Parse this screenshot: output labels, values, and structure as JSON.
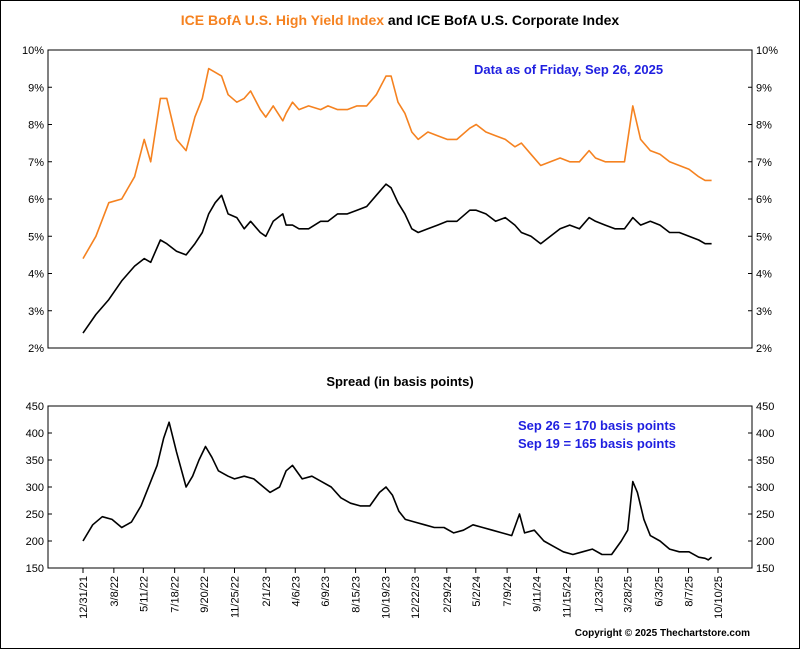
{
  "title": {
    "part_a": "ICE BofA U.S. High Yield Index",
    "part_b": " and ICE BofA U.S. Corporate Index"
  },
  "notes": {
    "data_as_of": "Data as of Friday, Sep 26, 2025",
    "spread_current": "Sep 26 = 170 basis points",
    "spread_prior": "Sep 19 = 165 basis points"
  },
  "spread_title": "Spread (in basis points)",
  "copyright": "Copyright © 2025 Thechartstore.com",
  "colors": {
    "high_yield": "#f58220",
    "corporate": "#000000",
    "spread": "#000000",
    "notes": "#1f1fe0"
  },
  "chart_data": [
    {
      "type": "line",
      "y_scale": "linear",
      "ylim": [
        2,
        10
      ],
      "y_ticks": [
        "2%",
        "3%",
        "4%",
        "5%",
        "6%",
        "7%",
        "8%",
        "9%",
        "10%"
      ],
      "y_axis_sides": "both",
      "grid": false,
      "x_type": "date",
      "x_range": [
        "2021-12-31",
        "2025-10-10"
      ],
      "series": [
        {
          "name": "ICE BofA U.S. High Yield Index",
          "color": "#f58220",
          "points": [
            [
              "2021-12-31",
              4.4
            ],
            [
              "2022-01-28",
              5.0
            ],
            [
              "2022-02-25",
              5.9
            ],
            [
              "2022-03-25",
              6.0
            ],
            [
              "2022-04-22",
              6.6
            ],
            [
              "2022-05-13",
              7.6
            ],
            [
              "2022-05-27",
              7.0
            ],
            [
              "2022-06-17",
              8.7
            ],
            [
              "2022-07-01",
              8.7
            ],
            [
              "2022-07-22",
              7.6
            ],
            [
              "2022-08-12",
              7.3
            ],
            [
              "2022-08-31",
              8.2
            ],
            [
              "2022-09-16",
              8.7
            ],
            [
              "2022-09-30",
              9.5
            ],
            [
              "2022-10-14",
              9.4
            ],
            [
              "2022-10-28",
              9.3
            ],
            [
              "2022-11-11",
              8.8
            ],
            [
              "2022-11-30",
              8.6
            ],
            [
              "2022-12-16",
              8.7
            ],
            [
              "2022-12-30",
              8.9
            ],
            [
              "2023-01-20",
              8.4
            ],
            [
              "2023-02-01",
              8.2
            ],
            [
              "2023-02-17",
              8.5
            ],
            [
              "2023-03-10",
              8.1
            ],
            [
              "2023-03-17",
              8.3
            ],
            [
              "2023-03-31",
              8.6
            ],
            [
              "2023-04-14",
              8.4
            ],
            [
              "2023-05-05",
              8.5
            ],
            [
              "2023-05-31",
              8.4
            ],
            [
              "2023-06-16",
              8.5
            ],
            [
              "2023-07-07",
              8.4
            ],
            [
              "2023-07-28",
              8.4
            ],
            [
              "2023-08-18",
              8.5
            ],
            [
              "2023-09-08",
              8.5
            ],
            [
              "2023-09-29",
              8.8
            ],
            [
              "2023-10-20",
              9.3
            ],
            [
              "2023-10-31",
              9.3
            ],
            [
              "2023-11-15",
              8.6
            ],
            [
              "2023-11-30",
              8.3
            ],
            [
              "2023-12-15",
              7.8
            ],
            [
              "2023-12-29",
              7.6
            ],
            [
              "2024-01-19",
              7.8
            ],
            [
              "2024-02-09",
              7.7
            ],
            [
              "2024-03-01",
              7.6
            ],
            [
              "2024-03-22",
              7.6
            ],
            [
              "2024-04-19",
              7.9
            ],
            [
              "2024-05-03",
              8.0
            ],
            [
              "2024-05-24",
              7.8
            ],
            [
              "2024-06-14",
              7.7
            ],
            [
              "2024-07-05",
              7.6
            ],
            [
              "2024-07-26",
              7.4
            ],
            [
              "2024-08-09",
              7.5
            ],
            [
              "2024-08-30",
              7.2
            ],
            [
              "2024-09-20",
              6.9
            ],
            [
              "2024-10-11",
              7.0
            ],
            [
              "2024-11-01",
              7.1
            ],
            [
              "2024-11-22",
              7.0
            ],
            [
              "2024-12-13",
              7.0
            ],
            [
              "2025-01-03",
              7.3
            ],
            [
              "2025-01-17",
              7.1
            ],
            [
              "2025-02-07",
              7.0
            ],
            [
              "2025-02-28",
              7.0
            ],
            [
              "2025-03-21",
              7.0
            ],
            [
              "2025-04-08",
              8.5
            ],
            [
              "2025-04-25",
              7.6
            ],
            [
              "2025-05-16",
              7.3
            ],
            [
              "2025-06-06",
              7.2
            ],
            [
              "2025-06-27",
              7.0
            ],
            [
              "2025-07-18",
              6.9
            ],
            [
              "2025-08-08",
              6.8
            ],
            [
              "2025-08-29",
              6.6
            ],
            [
              "2025-09-12",
              6.5
            ],
            [
              "2025-09-26",
              6.5
            ]
          ]
        },
        {
          "name": "ICE BofA U.S. Corporate Index",
          "color": "#000000",
          "points": [
            [
              "2021-12-31",
              2.4
            ],
            [
              "2022-01-28",
              2.9
            ],
            [
              "2022-02-25",
              3.3
            ],
            [
              "2022-03-25",
              3.8
            ],
            [
              "2022-04-22",
              4.2
            ],
            [
              "2022-05-13",
              4.4
            ],
            [
              "2022-05-27",
              4.3
            ],
            [
              "2022-06-17",
              4.9
            ],
            [
              "2022-07-01",
              4.8
            ],
            [
              "2022-07-22",
              4.6
            ],
            [
              "2022-08-12",
              4.5
            ],
            [
              "2022-08-31",
              4.8
            ],
            [
              "2022-09-16",
              5.1
            ],
            [
              "2022-09-30",
              5.6
            ],
            [
              "2022-10-14",
              5.9
            ],
            [
              "2022-10-28",
              6.1
            ],
            [
              "2022-11-11",
              5.6
            ],
            [
              "2022-11-30",
              5.5
            ],
            [
              "2022-12-16",
              5.2
            ],
            [
              "2022-12-30",
              5.4
            ],
            [
              "2023-01-20",
              5.1
            ],
            [
              "2023-02-01",
              5.0
            ],
            [
              "2023-02-17",
              5.4
            ],
            [
              "2023-03-10",
              5.6
            ],
            [
              "2023-03-17",
              5.3
            ],
            [
              "2023-03-31",
              5.3
            ],
            [
              "2023-04-14",
              5.2
            ],
            [
              "2023-05-05",
              5.2
            ],
            [
              "2023-05-31",
              5.4
            ],
            [
              "2023-06-16",
              5.4
            ],
            [
              "2023-07-07",
              5.6
            ],
            [
              "2023-07-28",
              5.6
            ],
            [
              "2023-08-18",
              5.7
            ],
            [
              "2023-09-08",
              5.8
            ],
            [
              "2023-09-29",
              6.1
            ],
            [
              "2023-10-20",
              6.4
            ],
            [
              "2023-10-31",
              6.3
            ],
            [
              "2023-11-15",
              5.9
            ],
            [
              "2023-11-30",
              5.6
            ],
            [
              "2023-12-15",
              5.2
            ],
            [
              "2023-12-29",
              5.1
            ],
            [
              "2024-01-19",
              5.2
            ],
            [
              "2024-02-09",
              5.3
            ],
            [
              "2024-03-01",
              5.4
            ],
            [
              "2024-03-22",
              5.4
            ],
            [
              "2024-04-19",
              5.7
            ],
            [
              "2024-05-03",
              5.7
            ],
            [
              "2024-05-24",
              5.6
            ],
            [
              "2024-06-14",
              5.4
            ],
            [
              "2024-07-05",
              5.5
            ],
            [
              "2024-07-26",
              5.3
            ],
            [
              "2024-08-09",
              5.1
            ],
            [
              "2024-08-30",
              5.0
            ],
            [
              "2024-09-20",
              4.8
            ],
            [
              "2024-10-11",
              5.0
            ],
            [
              "2024-11-01",
              5.2
            ],
            [
              "2024-11-22",
              5.3
            ],
            [
              "2024-12-13",
              5.2
            ],
            [
              "2025-01-03",
              5.5
            ],
            [
              "2025-01-17",
              5.4
            ],
            [
              "2025-02-07",
              5.3
            ],
            [
              "2025-02-28",
              5.2
            ],
            [
              "2025-03-21",
              5.2
            ],
            [
              "2025-04-08",
              5.5
            ],
            [
              "2025-04-25",
              5.3
            ],
            [
              "2025-05-16",
              5.4
            ],
            [
              "2025-06-06",
              5.3
            ],
            [
              "2025-06-27",
              5.1
            ],
            [
              "2025-07-18",
              5.1
            ],
            [
              "2025-08-08",
              5.0
            ],
            [
              "2025-08-29",
              4.9
            ],
            [
              "2025-09-12",
              4.8
            ],
            [
              "2025-09-26",
              4.8
            ]
          ]
        }
      ]
    },
    {
      "type": "line",
      "title": "Spread (in basis points)",
      "y_scale": "linear",
      "ylim": [
        150,
        450
      ],
      "y_ticks": [
        "150",
        "200",
        "250",
        "300",
        "350",
        "400",
        "450"
      ],
      "y_axis_sides": "both",
      "grid": false,
      "x_type": "date",
      "x_range": [
        "2021-12-31",
        "2025-10-10"
      ],
      "x_tick_labels": [
        "12/31/21",
        "3/8/22",
        "5/11/22",
        "7/18/22",
        "9/20/22",
        "11/25/22",
        "2/1/23",
        "4/6/23",
        "6/9/23",
        "8/15/23",
        "10/19/23",
        "12/22/23",
        "2/29/24",
        "5/2/24",
        "7/9/24",
        "9/11/24",
        "11/15/24",
        "1/23/25",
        "3/28/25",
        "6/3/25",
        "8/7/25",
        "10/10/25"
      ],
      "x_tick_dates": [
        "2021-12-31",
        "2022-03-08",
        "2022-05-11",
        "2022-07-18",
        "2022-09-20",
        "2022-11-25",
        "2023-02-01",
        "2023-04-06",
        "2023-06-09",
        "2023-08-15",
        "2023-10-19",
        "2023-12-22",
        "2024-02-29",
        "2024-05-02",
        "2024-07-09",
        "2024-09-11",
        "2024-11-15",
        "2025-01-23",
        "2025-03-28",
        "2025-06-03",
        "2025-08-07",
        "2025-10-10"
      ],
      "series": [
        {
          "name": "Spread",
          "color": "#000000",
          "points": [
            [
              "2021-12-31",
              200
            ],
            [
              "2022-01-21",
              230
            ],
            [
              "2022-02-11",
              245
            ],
            [
              "2022-03-04",
              240
            ],
            [
              "2022-03-25",
              225
            ],
            [
              "2022-04-15",
              235
            ],
            [
              "2022-05-06",
              265
            ],
            [
              "2022-05-27",
              310
            ],
            [
              "2022-06-10",
              340
            ],
            [
              "2022-06-24",
              390
            ],
            [
              "2022-07-06",
              420
            ],
            [
              "2022-07-22",
              365
            ],
            [
              "2022-08-12",
              300
            ],
            [
              "2022-08-26",
              320
            ],
            [
              "2022-09-09",
              350
            ],
            [
              "2022-09-23",
              375
            ],
            [
              "2022-10-07",
              355
            ],
            [
              "2022-10-21",
              330
            ],
            [
              "2022-11-11",
              320
            ],
            [
              "2022-11-25",
              315
            ],
            [
              "2022-12-16",
              320
            ],
            [
              "2023-01-06",
              315
            ],
            [
              "2023-01-27",
              300
            ],
            [
              "2023-02-10",
              290
            ],
            [
              "2023-03-03",
              300
            ],
            [
              "2023-03-17",
              330
            ],
            [
              "2023-03-31",
              340
            ],
            [
              "2023-04-21",
              315
            ],
            [
              "2023-05-12",
              320
            ],
            [
              "2023-06-02",
              310
            ],
            [
              "2023-06-23",
              300
            ],
            [
              "2023-07-14",
              280
            ],
            [
              "2023-08-04",
              270
            ],
            [
              "2023-08-25",
              265
            ],
            [
              "2023-09-15",
              265
            ],
            [
              "2023-10-06",
              290
            ],
            [
              "2023-10-20",
              300
            ],
            [
              "2023-11-03",
              285
            ],
            [
              "2023-11-17",
              255
            ],
            [
              "2023-12-01",
              240
            ],
            [
              "2023-12-22",
              235
            ],
            [
              "2024-01-12",
              230
            ],
            [
              "2024-02-02",
              225
            ],
            [
              "2024-02-23",
              225
            ],
            [
              "2024-03-15",
              215
            ],
            [
              "2024-04-05",
              220
            ],
            [
              "2024-04-26",
              230
            ],
            [
              "2024-05-17",
              225
            ],
            [
              "2024-06-07",
              220
            ],
            [
              "2024-06-28",
              215
            ],
            [
              "2024-07-19",
              210
            ],
            [
              "2024-08-05",
              250
            ],
            [
              "2024-08-16",
              215
            ],
            [
              "2024-09-06",
              220
            ],
            [
              "2024-09-27",
              200
            ],
            [
              "2024-10-18",
              190
            ],
            [
              "2024-11-08",
              180
            ],
            [
              "2024-11-29",
              175
            ],
            [
              "2024-12-20",
              180
            ],
            [
              "2025-01-10",
              185
            ],
            [
              "2025-01-31",
              175
            ],
            [
              "2025-02-21",
              175
            ],
            [
              "2025-03-14",
              200
            ],
            [
              "2025-03-28",
              220
            ],
            [
              "2025-04-08",
              310
            ],
            [
              "2025-04-18",
              290
            ],
            [
              "2025-05-02",
              240
            ],
            [
              "2025-05-16",
              210
            ],
            [
              "2025-06-06",
              200
            ],
            [
              "2025-06-27",
              185
            ],
            [
              "2025-07-18",
              180
            ],
            [
              "2025-08-08",
              180
            ],
            [
              "2025-08-29",
              170
            ],
            [
              "2025-09-12",
              168
            ],
            [
              "2025-09-19",
              165
            ],
            [
              "2025-09-26",
              170
            ]
          ]
        }
      ]
    }
  ]
}
